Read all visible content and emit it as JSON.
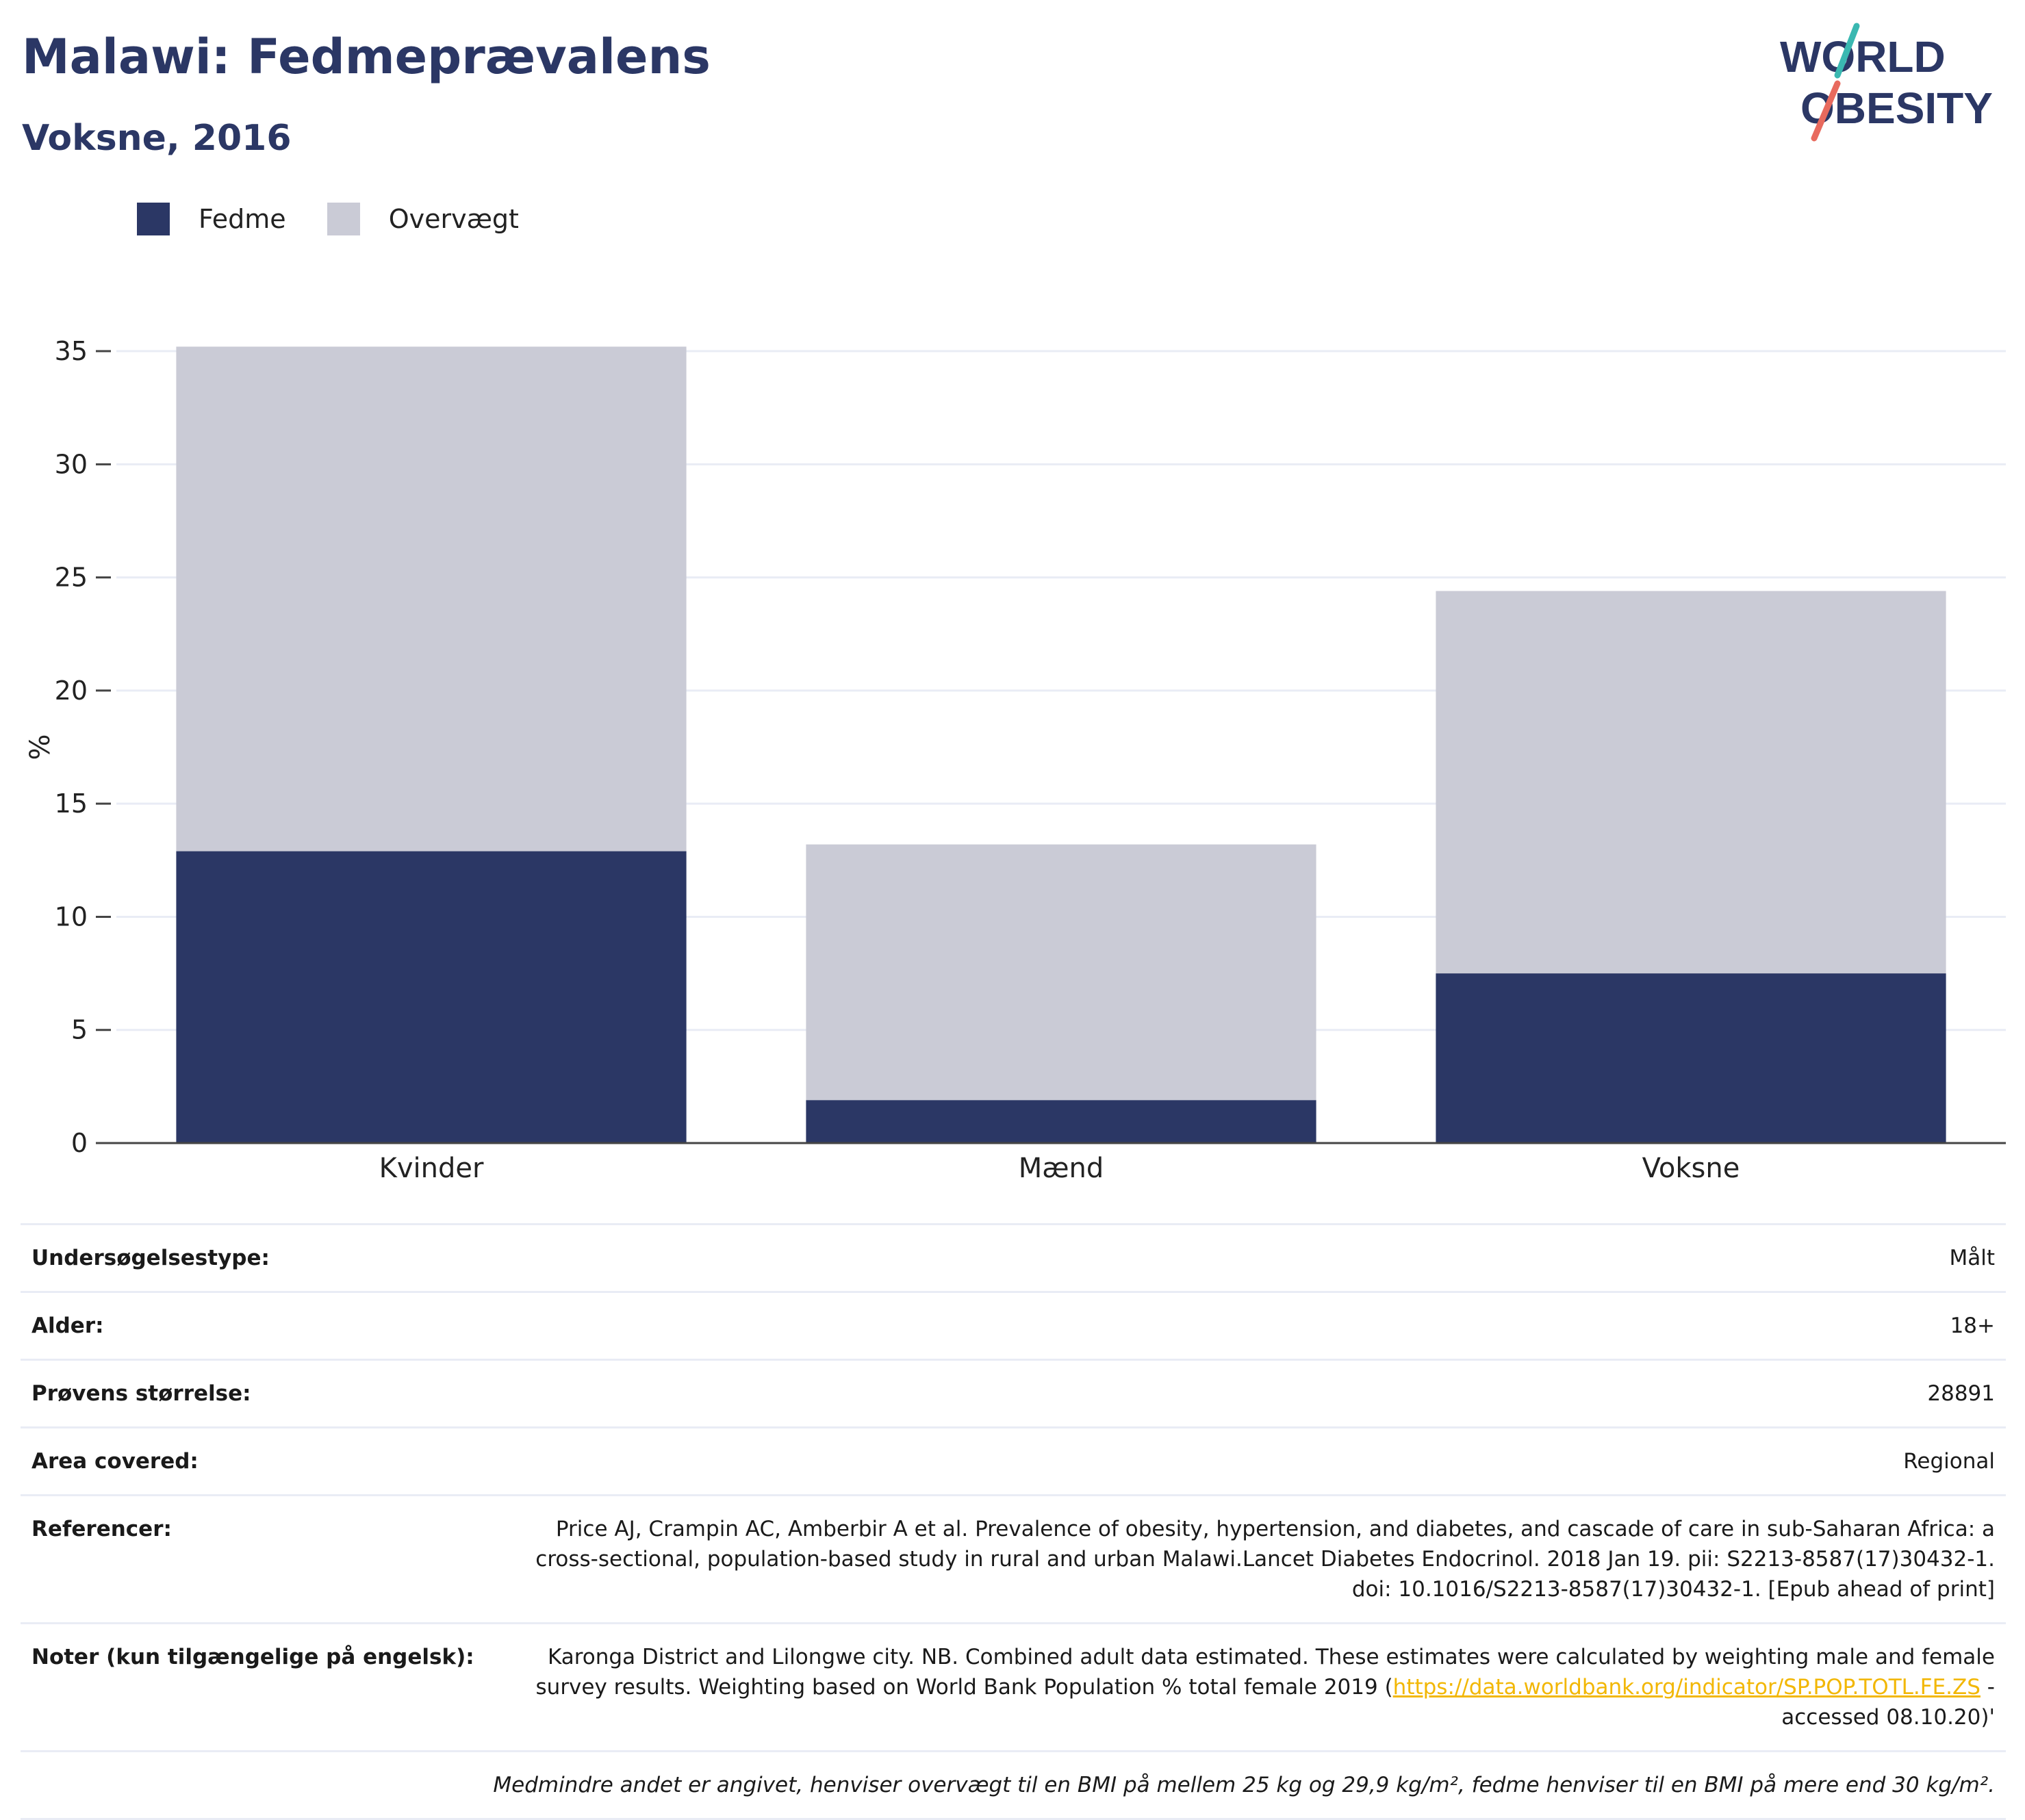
{
  "header": {
    "title": "Malawi: Fedmeprævalens",
    "subtitle": "Voksne, 2016"
  },
  "logo": {
    "line1": "WORLD",
    "line2": "OBESITY"
  },
  "colors": {
    "fedme": "#2b3765",
    "overvaegt": "#cacbd6",
    "title": "#2b3765",
    "link": "#f2b705"
  },
  "chart_data": {
    "type": "bar",
    "stacked": true,
    "categories": [
      "Kvinder",
      "Mænd",
      "Voksne"
    ],
    "series": [
      {
        "name": "Fedme",
        "values": [
          12.9,
          1.9,
          7.5
        ]
      },
      {
        "name": "Overvægt",
        "values": [
          22.3,
          11.3,
          16.9
        ]
      }
    ],
    "title": "Malawi: Fedmeprævalens",
    "subtitle": "Voksne, 2016",
    "ylabel": "%",
    "ylim": [
      0,
      36
    ],
    "yticks": [
      0,
      5,
      10,
      15,
      20,
      25,
      30,
      35
    ],
    "grid": true,
    "legend_position": "top-left"
  },
  "info": {
    "rows": [
      {
        "key": "Undersøgelsestype:",
        "value": "Målt"
      },
      {
        "key": "Alder:",
        "value": "18+"
      },
      {
        "key": "Prøvens størrelse:",
        "value": "28891"
      },
      {
        "key": "Area covered:",
        "value": "Regional"
      },
      {
        "key": "Referencer:",
        "value": "Price AJ, Crampin AC, Amberbir A et al. Prevalence of obesity, hypertension, and diabetes, and cascade of care in sub-Saharan Africa: a cross-sectional, population-based study in rural and urban Malawi.Lancet Diabetes Endocrinol. 2018 Jan 19. pii: S2213-8587(17)30432-1. doi: 10.1016/S2213-8587(17)30432-1. [Epub ahead of print]"
      }
    ],
    "notes": {
      "key": "Noter (kun tilgængelige på engelsk):",
      "text": "Karonga District and Lilongwe city. NB. Combined adult data estimated. These estimates were calculated by weighting male and female survey results. Weighting based on World Bank Population % total female 2019 (",
      "link": "https://data.worldbank.org/indicator/SP.POP.TOTL.FE.ZS",
      "after": " - accessed 08.10.20)'"
    },
    "footnote": "Medmindre andet er angivet, henviser overvægt til en BMI på mellem 25 kg og 29,9 kg/m², fedme henviser til en BMI på mere end 30 kg/m²."
  }
}
